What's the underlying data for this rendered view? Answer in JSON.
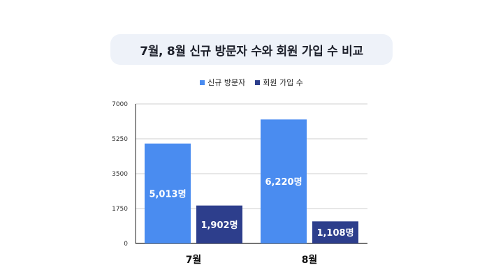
{
  "chart_data": {
    "type": "bar",
    "title": "7월, 8월 신규 방문자 수와 회원 가입 수 비교",
    "categories": [
      "7월",
      "8월"
    ],
    "series": [
      {
        "name": "신규 방문자",
        "values": [
          5013,
          6220
        ],
        "labels": [
          "5,013명",
          "6,220명"
        ],
        "color": "#4a8cf0"
      },
      {
        "name": "회원 가입 수",
        "values": [
          1902,
          1108
        ],
        "labels": [
          "1,902명",
          "1,108명"
        ],
        "color": "#2d3e8c"
      }
    ],
    "ylim": [
      0,
      7000
    ],
    "yticks": [
      "0",
      "1750",
      "3500",
      "5250",
      "7000"
    ],
    "grid": true,
    "legend_position": "top"
  }
}
